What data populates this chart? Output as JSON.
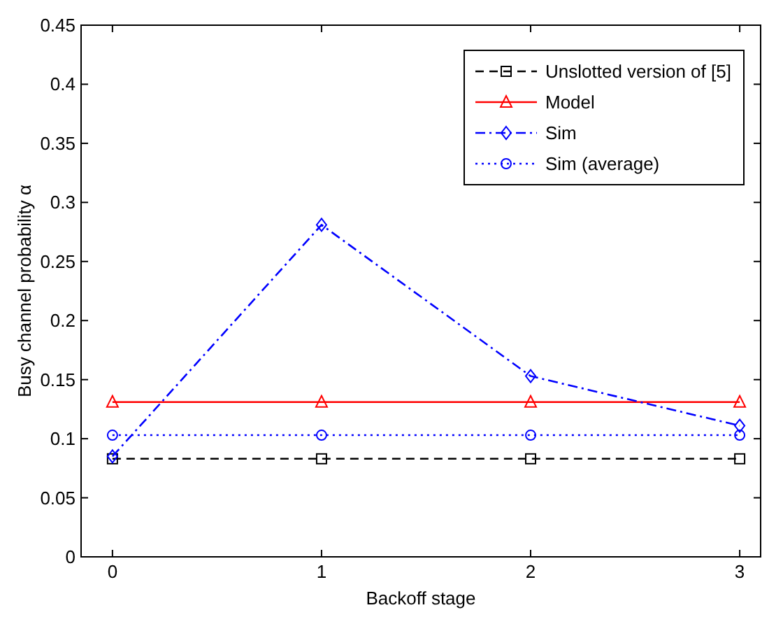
{
  "chart_data": {
    "type": "line",
    "xlabel": "Backoff stage",
    "ylabel": "Busy channel probability α",
    "x": [
      0,
      1,
      2,
      3
    ],
    "xlim": [
      -0.15,
      3.1
    ],
    "xticks": [
      0,
      1,
      2,
      3
    ],
    "ylim": [
      0,
      0.45
    ],
    "yticks": [
      0,
      0.05,
      0.1,
      0.15,
      0.2,
      0.25,
      0.3,
      0.35,
      0.4,
      0.45
    ],
    "grid": false,
    "legend": "top right",
    "series": [
      {
        "name": "Unslotted version of [5]",
        "color": "#000000",
        "values": [
          0.083,
          0.083,
          0.083,
          0.083
        ],
        "marker": "square",
        "line_style": "dashed"
      },
      {
        "name": "Model",
        "color": "#ff0000",
        "values": [
          0.131,
          0.131,
          0.131,
          0.131
        ],
        "marker": "triangle",
        "line_style": "solid"
      },
      {
        "name": "Sim",
        "color": "#0000ff",
        "values": [
          0.085,
          0.281,
          0.153,
          0.111
        ],
        "marker": "diamond",
        "line_style": "dashdot"
      },
      {
        "name": "Sim (average)",
        "color": "#0000ff",
        "values": [
          0.103,
          0.103,
          0.103,
          0.103
        ],
        "marker": "circle",
        "line_style": "dotted"
      }
    ]
  }
}
